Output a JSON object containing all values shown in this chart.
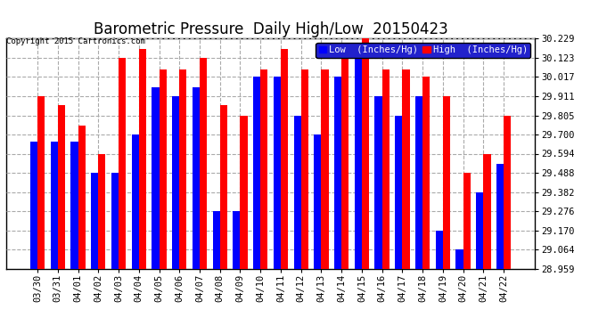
{
  "title": "Barometric Pressure  Daily High/Low  20150423",
  "copyright": "Copyright 2015 Cartronics.com",
  "legend_low": "Low  (Inches/Hg)",
  "legend_high": "High  (Inches/Hg)",
  "dates": [
    "03/30",
    "03/31",
    "04/01",
    "04/02",
    "04/03",
    "04/04",
    "04/05",
    "04/06",
    "04/07",
    "04/08",
    "04/09",
    "04/10",
    "04/11",
    "04/12",
    "04/13",
    "04/14",
    "04/15",
    "04/16",
    "04/17",
    "04/18",
    "04/19",
    "04/20",
    "04/21",
    "04/22"
  ],
  "low_values": [
    29.66,
    29.66,
    29.66,
    29.488,
    29.488,
    29.7,
    29.96,
    29.911,
    29.96,
    29.276,
    29.276,
    30.017,
    30.017,
    29.805,
    29.7,
    30.017,
    30.123,
    29.911,
    29.805,
    29.911,
    29.17,
    29.064,
    29.382,
    29.54
  ],
  "high_values": [
    29.911,
    29.86,
    29.75,
    29.594,
    30.123,
    30.17,
    30.06,
    30.06,
    30.123,
    29.86,
    29.805,
    30.06,
    30.17,
    30.06,
    30.06,
    30.17,
    30.229,
    30.06,
    30.06,
    30.017,
    29.911,
    29.488,
    29.594,
    29.805
  ],
  "ylim_min": 28.959,
  "ylim_max": 30.229,
  "yticks": [
    28.959,
    29.064,
    29.17,
    29.276,
    29.382,
    29.488,
    29.594,
    29.7,
    29.805,
    29.911,
    30.017,
    30.123,
    30.229
  ],
  "bar_width": 0.36,
  "low_color": "#0000ff",
  "high_color": "#ff0000",
  "background_color": "#ffffff",
  "grid_color": "#aaaaaa",
  "title_fontsize": 12,
  "tick_fontsize": 7.5,
  "legend_fontsize": 7.5
}
